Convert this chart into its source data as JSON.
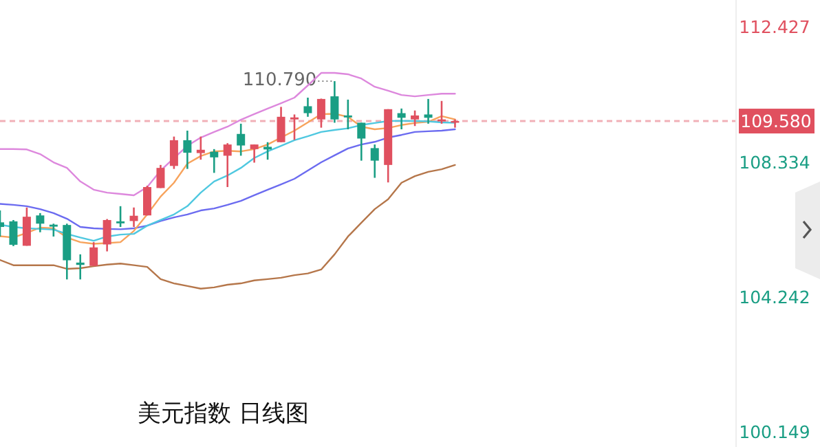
{
  "chart_data": {
    "type": "candlestick",
    "title": "美元指数 日线图",
    "categories": [
      null,
      null,
      null,
      null,
      null,
      null,
      null,
      null,
      null,
      null,
      null,
      null,
      null,
      null,
      null,
      null,
      null,
      null,
      null,
      null,
      null,
      null,
      null,
      null,
      null,
      null,
      null,
      null,
      null,
      null,
      null,
      null,
      null,
      null,
      null
    ],
    "ohlc": [
      [
        106.51,
        106.87,
        106.08,
        106.37
      ],
      [
        106.54,
        106.58,
        105.79,
        105.83
      ],
      [
        105.8,
        106.96,
        105.8,
        106.68
      ],
      [
        106.72,
        106.79,
        106.21,
        106.47
      ],
      [
        106.44,
        106.47,
        106.08,
        106.38
      ],
      [
        106.43,
        106.47,
        104.78,
        105.36
      ],
      [
        105.29,
        105.54,
        104.78,
        105.22
      ],
      [
        105.19,
        105.91,
        105.19,
        105.75
      ],
      [
        105.84,
        106.61,
        105.63,
        106.58
      ],
      [
        106.54,
        107.0,
        106.37,
        106.48
      ],
      [
        106.55,
        106.96,
        106.37,
        106.71
      ],
      [
        106.72,
        107.62,
        106.72,
        107.58
      ],
      [
        107.55,
        108.25,
        107.55,
        108.16
      ],
      [
        108.22,
        109.11,
        108.13,
        109.0
      ],
      [
        109.0,
        109.29,
        108.13,
        108.62
      ],
      [
        108.61,
        109.11,
        108.41,
        108.71
      ],
      [
        108.65,
        108.73,
        108.01,
        108.48
      ],
      [
        108.53,
        108.91,
        107.58,
        108.87
      ],
      [
        109.19,
        109.5,
        108.53,
        108.84
      ],
      [
        108.73,
        108.87,
        108.32,
        108.87
      ],
      [
        108.8,
        108.94,
        108.41,
        108.72
      ],
      [
        108.94,
        110.01,
        108.94,
        109.71
      ],
      [
        109.63,
        109.78,
        109.01,
        109.69
      ],
      [
        110.03,
        110.29,
        109.71,
        109.82
      ],
      [
        109.63,
        110.26,
        109.38,
        110.25
      ],
      [
        110.33,
        110.79,
        109.53,
        109.63
      ],
      [
        109.75,
        110.23,
        109.33,
        109.69
      ],
      [
        109.53,
        109.53,
        108.38,
        109.05
      ],
      [
        108.76,
        108.87,
        107.86,
        108.38
      ],
      [
        108.25,
        109.94,
        107.72,
        109.94
      ],
      [
        109.82,
        109.96,
        109.33,
        109.68
      ],
      [
        109.63,
        109.9,
        109.43,
        109.75
      ],
      [
        109.78,
        110.25,
        109.5,
        109.68
      ],
      [
        109.57,
        110.19,
        109.5,
        109.63
      ],
      [
        109.54,
        109.63,
        109.38,
        109.58
      ]
    ],
    "colors": [
      "#1a9e84",
      "#1a9e84",
      "#e0505f",
      "#1a9e84",
      "#1a9e84",
      "#1a9e84",
      "#1a9e84",
      "#e0505f",
      "#e0505f",
      "#1a9e84",
      "#e0505f",
      "#e0505f",
      "#e0505f",
      "#e0505f",
      "#1a9e84",
      "#e0505f",
      "#1a9e84",
      "#e0505f",
      "#1a9e84",
      "#e0505f",
      "#1a9e84",
      "#e0505f",
      "#e0505f",
      "#1a9e84",
      "#e0505f",
      "#1a9e84",
      "#1a9e84",
      "#1a9e84",
      "#1a9e84",
      "#e0505f",
      "#1a9e84",
      "#e0505f",
      "#1a9e84",
      "#e0505f",
      "#e0505f"
    ],
    "series": [
      {
        "type": "line",
        "color": "#dd88dd",
        "values": [
          108.73,
          108.73,
          108.72,
          108.58,
          108.33,
          108.16,
          107.75,
          107.5,
          107.41,
          107.37,
          107.33,
          107.58,
          108.08,
          108.46,
          108.83,
          109.08,
          109.25,
          109.41,
          109.62,
          109.79,
          109.96,
          110.12,
          110.29,
          110.66,
          111.04,
          111.04,
          111.0,
          110.87,
          110.62,
          110.5,
          110.37,
          110.33,
          110.37,
          110.41,
          110.41
        ]
      },
      {
        "type": "line",
        "color": "#6b6bf0",
        "values": [
          107.07,
          107.04,
          107.0,
          106.91,
          106.79,
          106.62,
          106.37,
          106.33,
          106.31,
          106.3,
          106.33,
          106.41,
          106.55,
          106.66,
          106.75,
          106.87,
          106.93,
          107.04,
          107.16,
          107.33,
          107.5,
          107.66,
          107.83,
          108.08,
          108.33,
          108.54,
          108.75,
          108.87,
          108.95,
          109.08,
          109.16,
          109.25,
          109.27,
          109.29,
          109.33
        ]
      },
      {
        "type": "line",
        "color": "#b5764a",
        "values": [
          105.37,
          105.21,
          105.21,
          105.21,
          105.21,
          105.1,
          105.12,
          105.18,
          105.23,
          105.26,
          105.21,
          105.16,
          104.79,
          104.66,
          104.58,
          104.5,
          104.54,
          104.62,
          104.66,
          104.75,
          104.79,
          104.83,
          104.91,
          104.96,
          105.08,
          105.54,
          106.08,
          106.5,
          106.91,
          107.21,
          107.71,
          107.91,
          108.04,
          108.12,
          108.25
        ]
      },
      {
        "type": "line",
        "color": "#f7a35c",
        "values": [
          106.09,
          106.05,
          106.19,
          106.35,
          106.33,
          106.05,
          105.91,
          105.86,
          105.88,
          105.91,
          106.25,
          106.75,
          107.29,
          107.71,
          108.29,
          108.52,
          108.66,
          108.68,
          108.66,
          108.73,
          108.87,
          109.08,
          109.29,
          109.54,
          109.79,
          109.8,
          109.71,
          109.41,
          109.33,
          109.37,
          109.46,
          109.52,
          109.56,
          109.73,
          109.63
        ]
      },
      {
        "type": "line",
        "color": "#4fc8e0",
        "values": [
          106.44,
          106.37,
          106.33,
          106.31,
          106.29,
          106.16,
          106.05,
          105.95,
          106.08,
          106.14,
          106.16,
          106.41,
          106.58,
          106.75,
          107.0,
          107.41,
          107.75,
          107.93,
          108.16,
          108.46,
          108.66,
          108.83,
          109.0,
          109.12,
          109.25,
          109.31,
          109.36,
          109.46,
          109.52,
          109.58,
          109.59,
          109.58,
          109.57,
          109.54,
          109.53
        ]
      }
    ],
    "ylim": [
      99.7,
      113.25
    ],
    "yticks": [
      112.427,
      108.334,
      104.242,
      100.149
    ],
    "ref_lines": [
      {
        "axis": "y",
        "value": 109.58,
        "label": "109.580",
        "color": "#e0505f",
        "line_style": "dashed"
      }
    ],
    "annotations": [
      "110.790"
    ]
  }
}
